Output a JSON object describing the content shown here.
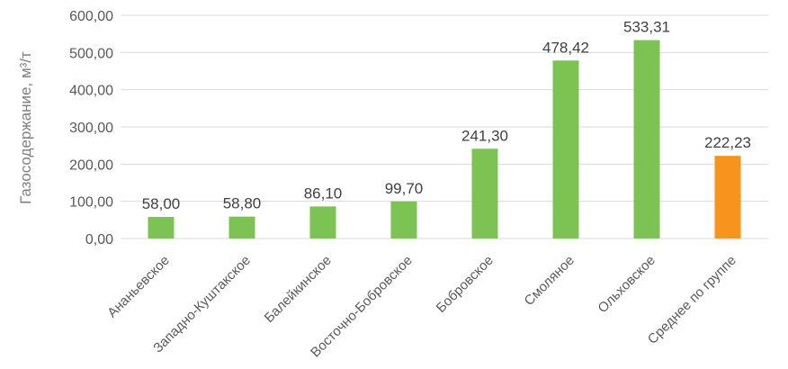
{
  "chart_data": {
    "type": "bar",
    "ylabel": "Газосодержание, м³/т",
    "ylim": [
      0,
      600
    ],
    "ytick_step": 100,
    "yticks": [
      "0,00",
      "100,00",
      "200,00",
      "300,00",
      "400,00",
      "500,00",
      "600,00"
    ],
    "grid": true,
    "categories": [
      "Ананьевское",
      "Западно-Куштакское",
      "Балейкинское",
      "Восточно-Бобровское",
      "Бобровское",
      "Смоляное",
      "Ольховское",
      "Среднее по группе"
    ],
    "values": [
      58.0,
      58.8,
      86.1,
      99.7,
      241.3,
      478.42,
      533.31,
      222.23
    ],
    "data_labels": [
      "58,00",
      "58,80",
      "86,10",
      "99,70",
      "241,30",
      "478,42",
      "533,31",
      "222,23"
    ],
    "colors": [
      "#7dc354",
      "#7dc354",
      "#7dc354",
      "#7dc354",
      "#7dc354",
      "#7dc354",
      "#7dc354",
      "#f7941d"
    ],
    "grid_color": "#d9d9d9"
  }
}
